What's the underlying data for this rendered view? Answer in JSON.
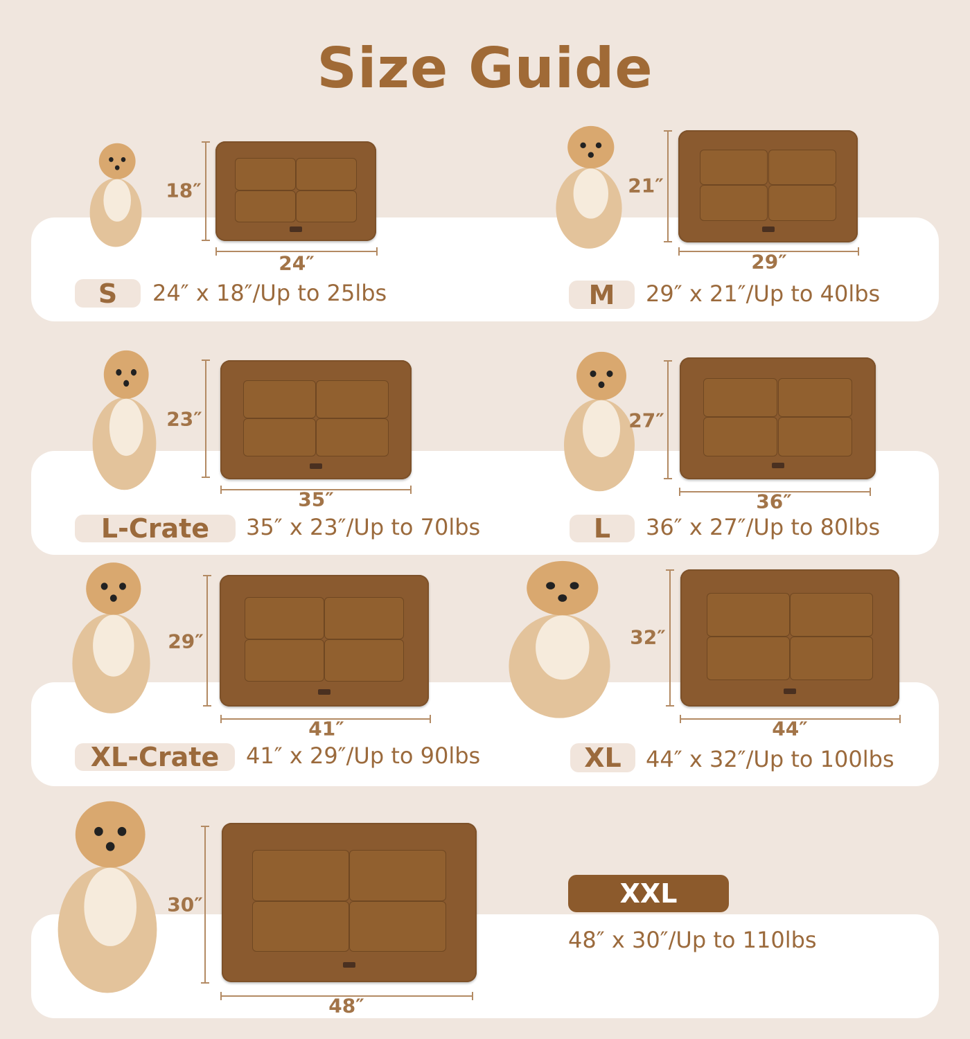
{
  "title": "Size Guide",
  "colors": {
    "background": "#f0e6de",
    "band": "#ffffff",
    "text": "#9b6a3c",
    "mat": "#8a5a2f",
    "xxl_badge": "#8c5a2c"
  },
  "sizes": [
    {
      "label": "S",
      "width": "24″",
      "height": "18″",
      "spec": "24″ x 18″/Up to 25lbs",
      "dog": "chihuahua"
    },
    {
      "label": "M",
      "width": "29″",
      "height": "21″",
      "spec": "29″ x 21″/Up to 40lbs",
      "dog": "fluffy-puppy"
    },
    {
      "label": "L-Crate",
      "width": "35″",
      "height": "23″",
      "spec": "35″ x 23″/Up to 70lbs",
      "dog": "corgi"
    },
    {
      "label": "L",
      "width": "36″",
      "height": "27″",
      "spec": "36″ x 27″/Up to 80lbs",
      "dog": "border-collie"
    },
    {
      "label": "XL-Crate",
      "width": "41″",
      "height": "29″",
      "spec": "41″ x 29″/Up to 90lbs",
      "dog": "shiba-inu"
    },
    {
      "label": "XL",
      "width": "44″",
      "height": "32″",
      "spec": "44″ x 32″/Up to 100lbs",
      "dog": "golden-retriever"
    },
    {
      "label": "XXL",
      "width": "48″",
      "height": "30″",
      "spec": "48″ x 30″/Up to 110lbs",
      "dog": "white-golden-retriever"
    }
  ]
}
